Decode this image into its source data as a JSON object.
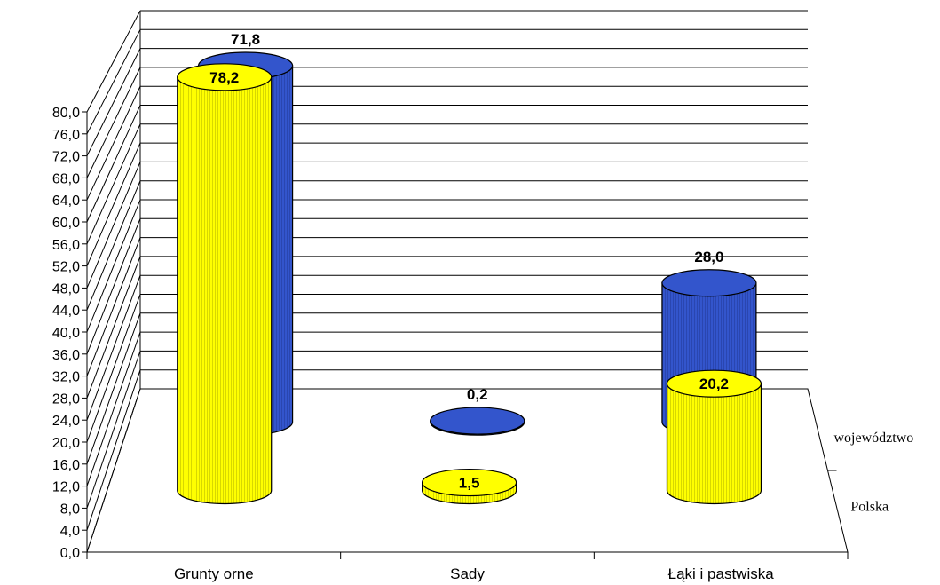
{
  "chart_data": {
    "type": "bar",
    "subtype": "3d-cylinder",
    "categories": [
      "Grunty orne",
      "Sady",
      "Łąki i pastwiska"
    ],
    "series": [
      {
        "name": "województwo",
        "values": [
          71.8,
          0.2,
          28.0
        ],
        "labels": [
          "71,8",
          "0,2",
          "28,0"
        ],
        "color": "#3355cc"
      },
      {
        "name": "Polska",
        "values": [
          78.2,
          1.5,
          20.2
        ],
        "labels": [
          "78,2",
          "1,5",
          "20,2"
        ],
        "color": "#ffff00"
      }
    ],
    "ylim": [
      0,
      80
    ],
    "ytick_step": 4,
    "ytick_labels": [
      "0,0",
      "4,0",
      "8,0",
      "12,0",
      "16,0",
      "20,0",
      "24,0",
      "28,0",
      "32,0",
      "36,0",
      "40,0",
      "44,0",
      "48,0",
      "52,0",
      "56,0",
      "60,0",
      "64,0",
      "68,0",
      "72,0",
      "76,0",
      "80,0"
    ],
    "grid": true,
    "title": "",
    "xlabel": "",
    "ylabel": ""
  }
}
